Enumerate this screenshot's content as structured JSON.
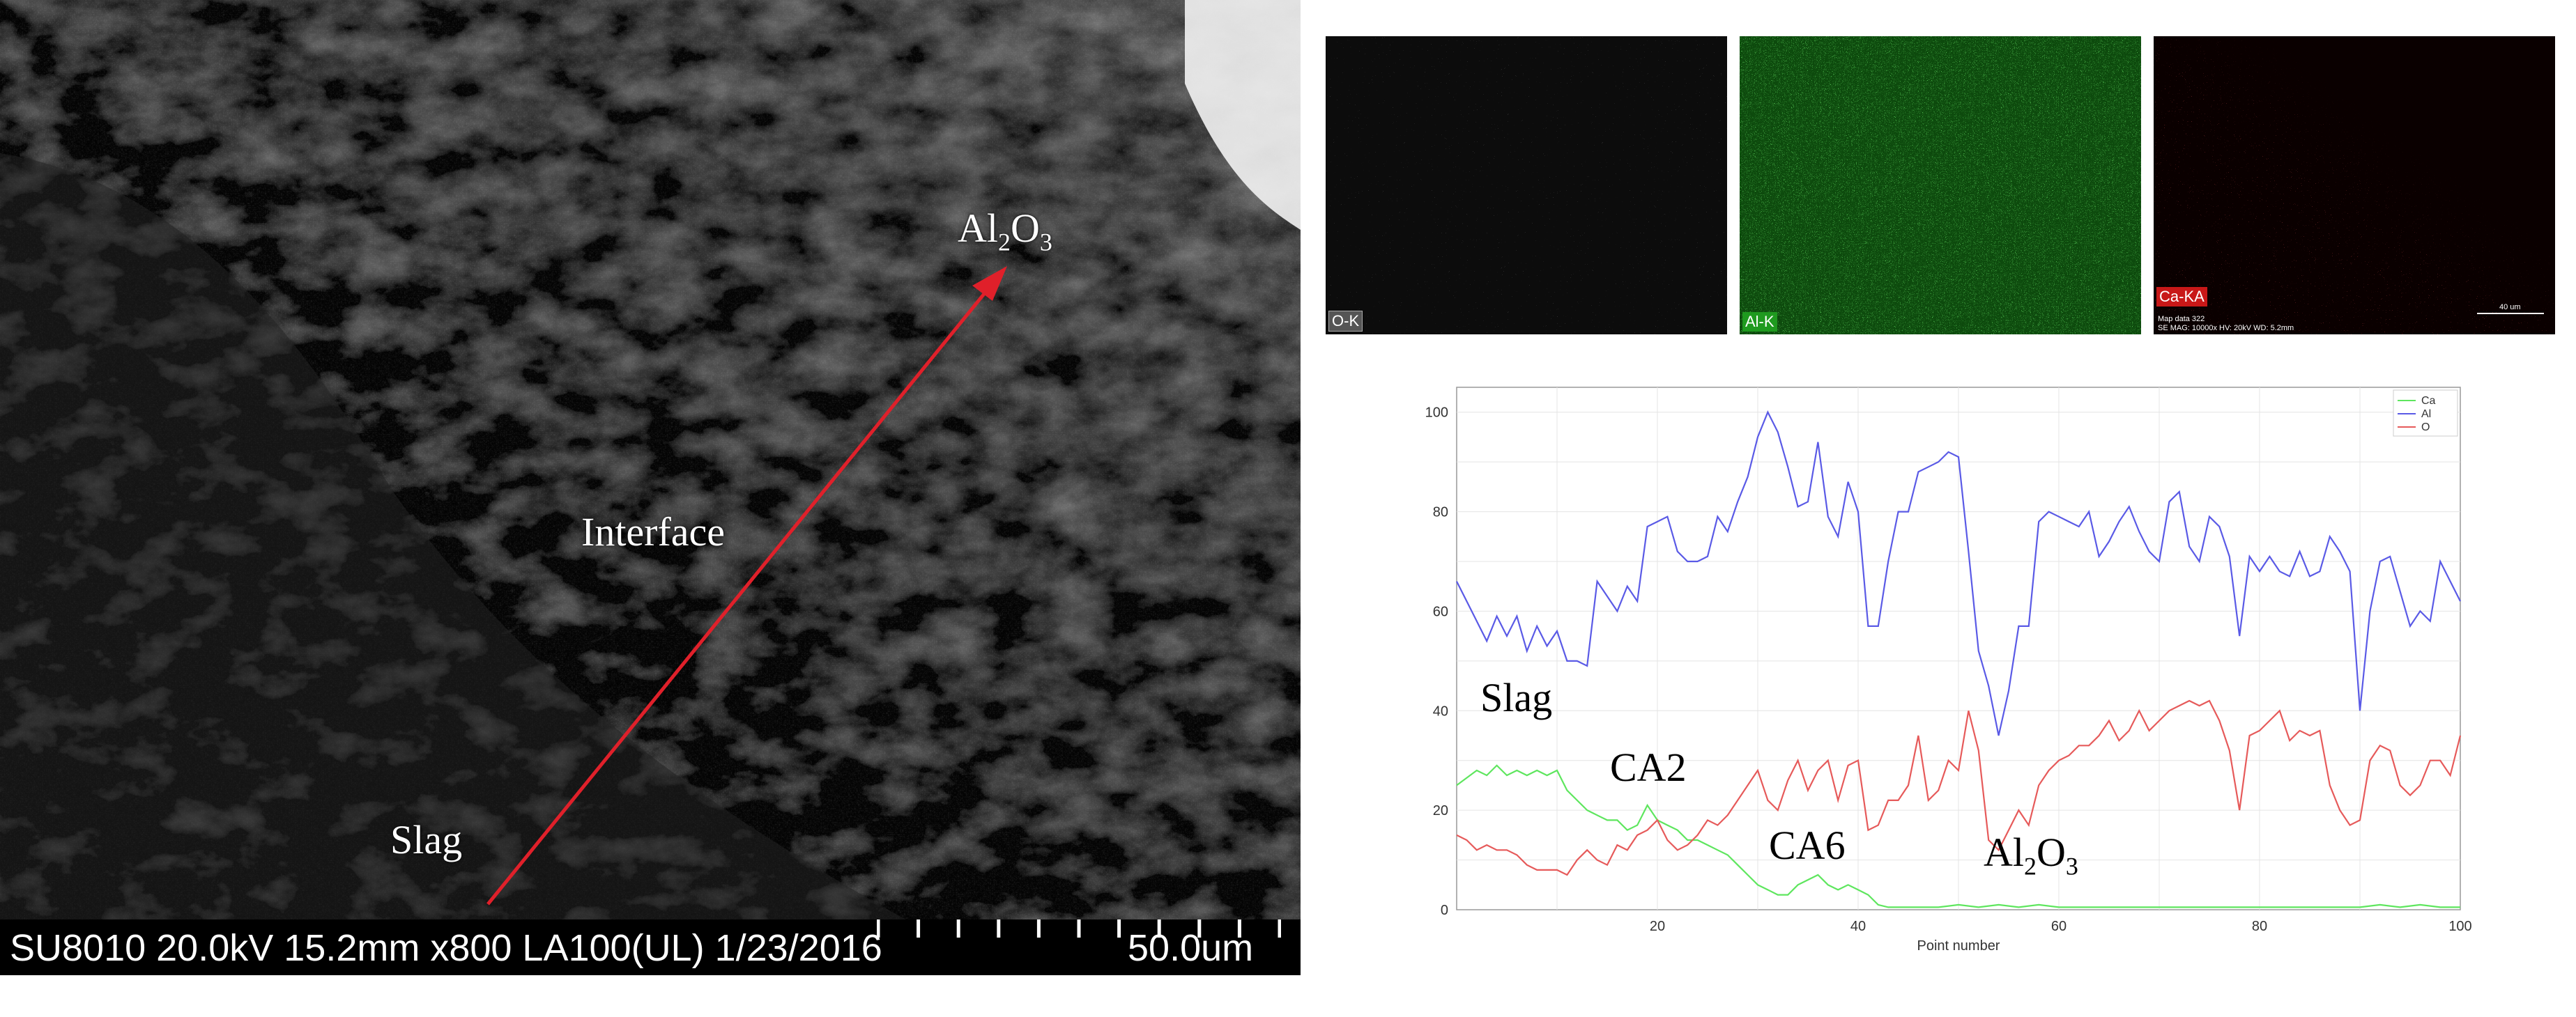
{
  "sem": {
    "labels": {
      "alumina": "Al2O3",
      "interface": "Interface",
      "slag": "Slag"
    },
    "footer_text": "SU8010 20.0kV 15.2mm x800 LA100(UL) 1/23/2016",
    "scale_text": "50.0um",
    "arrow_color": "#e0202a"
  },
  "maps": [
    {
      "tag": "O-K",
      "color": "#d8d8d8"
    },
    {
      "tag": "Al-K",
      "color": "#22c722"
    },
    {
      "tag": "Ca-KA",
      "color": "#ff2020",
      "meta_line1": "Map data 322",
      "meta_line2": "SE MAG: 10000x HV: 20kV WD: 5.2mm",
      "scale_text": "40 um"
    }
  ],
  "chart_data": {
    "type": "line",
    "xlabel": "Point number",
    "ylabel": "",
    "xlim": [
      0,
      100
    ],
    "ylim": [
      0,
      105
    ],
    "xticks": [
      20,
      40,
      60,
      80,
      100
    ],
    "yticks": [
      0,
      20,
      40,
      60,
      80,
      100
    ],
    "grid": true,
    "legend_position": "top-right",
    "series": [
      {
        "name": "Ca",
        "color": "#5ee65e",
        "x": [
          0,
          2,
          3,
          4,
          5,
          6,
          7,
          8,
          9,
          10,
          11,
          12,
          13,
          14,
          15,
          16,
          17,
          18,
          19,
          20,
          21,
          22,
          23,
          24,
          25,
          26,
          27,
          28,
          29,
          30,
          31,
          32,
          33,
          34,
          35,
          36,
          37,
          38,
          39,
          40,
          41,
          42,
          43,
          44,
          46,
          48,
          50,
          52,
          54,
          56,
          58,
          60,
          62,
          64,
          66,
          68,
          70,
          72,
          74,
          76,
          78,
          80,
          82,
          84,
          86,
          88,
          90,
          92,
          94,
          96,
          98,
          100
        ],
        "y": [
          25,
          28,
          27,
          29,
          27,
          28,
          27,
          28,
          27,
          28,
          24,
          22,
          20,
          19,
          18,
          18,
          16,
          17,
          21,
          18,
          17,
          16,
          14,
          14,
          13,
          12,
          11,
          9,
          7,
          5,
          4,
          3,
          3,
          5,
          6,
          7,
          5,
          4,
          5,
          4,
          3,
          1,
          0.5,
          0.5,
          0.5,
          0.5,
          1,
          0.5,
          1,
          0.5,
          1,
          0.5,
          0.5,
          0.5,
          0.5,
          0.5,
          0.5,
          0.5,
          0.5,
          0.5,
          0.5,
          0.5,
          0.5,
          0.5,
          0.5,
          0.5,
          0.5,
          1,
          0.5,
          1,
          0.5,
          0.5
        ]
      },
      {
        "name": "Al",
        "color": "#5a5ae6",
        "x": [
          0,
          1,
          2,
          3,
          4,
          5,
          6,
          7,
          8,
          9,
          10,
          11,
          12,
          13,
          14,
          15,
          16,
          17,
          18,
          19,
          20,
          21,
          22,
          23,
          24,
          25,
          26,
          27,
          28,
          29,
          30,
          31,
          32,
          33,
          34,
          35,
          36,
          37,
          38,
          39,
          40,
          41,
          42,
          43,
          44,
          45,
          46,
          47,
          48,
          49,
          50,
          51,
          52,
          53,
          54,
          55,
          56,
          57,
          58,
          59,
          60,
          61,
          62,
          63,
          64,
          65,
          66,
          67,
          68,
          69,
          70,
          71,
          72,
          73,
          74,
          75,
          76,
          77,
          78,
          79,
          80,
          81,
          82,
          83,
          84,
          85,
          86,
          87,
          88,
          89,
          90,
          91,
          92,
          93,
          94,
          95,
          96,
          97,
          98,
          99,
          100
        ],
        "y": [
          66,
          62,
          58,
          54,
          59,
          55,
          59,
          52,
          57,
          53,
          56,
          50,
          50,
          49,
          66,
          63,
          60,
          65,
          62,
          77,
          78,
          79,
          72,
          70,
          70,
          71,
          79,
          76,
          82,
          87,
          95,
          100,
          96,
          89,
          81,
          82,
          94,
          79,
          75,
          86,
          80,
          57,
          57,
          70,
          80,
          80,
          88,
          89,
          90,
          92,
          91,
          72,
          52,
          45,
          35,
          44,
          57,
          57,
          78,
          80,
          79,
          78,
          77,
          80,
          71,
          74,
          78,
          81,
          76,
          72,
          70,
          82,
          84,
          73,
          70,
          79,
          77,
          71,
          55,
          71,
          68,
          71,
          68,
          67,
          72,
          67,
          68,
          75,
          72,
          68,
          40,
          60,
          70,
          71,
          64,
          57,
          60,
          58,
          70,
          66,
          62
        ]
      },
      {
        "name": "O",
        "color": "#e65a5a",
        "x": [
          0,
          1,
          2,
          3,
          4,
          5,
          6,
          7,
          8,
          9,
          10,
          11,
          12,
          13,
          14,
          15,
          16,
          17,
          18,
          19,
          20,
          21,
          22,
          23,
          24,
          25,
          26,
          27,
          28,
          29,
          30,
          31,
          32,
          33,
          34,
          35,
          36,
          37,
          38,
          39,
          40,
          41,
          42,
          43,
          44,
          45,
          46,
          47,
          48,
          49,
          50,
          51,
          52,
          53,
          54,
          55,
          56,
          57,
          58,
          59,
          60,
          61,
          62,
          63,
          64,
          65,
          66,
          67,
          68,
          69,
          70,
          71,
          72,
          73,
          74,
          75,
          76,
          77,
          78,
          79,
          80,
          81,
          82,
          83,
          84,
          85,
          86,
          87,
          88,
          89,
          90,
          91,
          92,
          93,
          94,
          95,
          96,
          97,
          98,
          99,
          100
        ],
        "y": [
          15,
          14,
          12,
          13,
          12,
          12,
          11,
          9,
          8,
          8,
          8,
          7,
          10,
          12,
          10,
          9,
          13,
          12,
          15,
          16,
          18,
          14,
          12,
          13,
          15,
          18,
          17,
          19,
          22,
          25,
          28,
          22,
          20,
          26,
          30,
          24,
          28,
          30,
          22,
          29,
          30,
          16,
          17,
          22,
          22,
          25,
          35,
          22,
          24,
          30,
          28,
          40,
          32,
          14,
          12,
          16,
          20,
          17,
          25,
          28,
          30,
          31,
          33,
          33,
          35,
          38,
          34,
          36,
          40,
          36,
          38,
          40,
          41,
          42,
          41,
          42,
          38,
          32,
          20,
          35,
          36,
          38,
          40,
          34,
          36,
          35,
          36,
          25,
          20,
          17,
          18,
          30,
          33,
          32,
          25,
          23,
          25,
          30,
          30,
          27,
          35
        ]
      }
    ],
    "annotations": [
      {
        "text": "Slag",
        "x": 3,
        "y": 28
      },
      {
        "text": "CA2",
        "x": 16,
        "y": 19
      },
      {
        "text": "CA6",
        "x": 32,
        "y": 7
      },
      {
        "text": "Al2O3",
        "x": 56,
        "y": 6
      }
    ]
  }
}
